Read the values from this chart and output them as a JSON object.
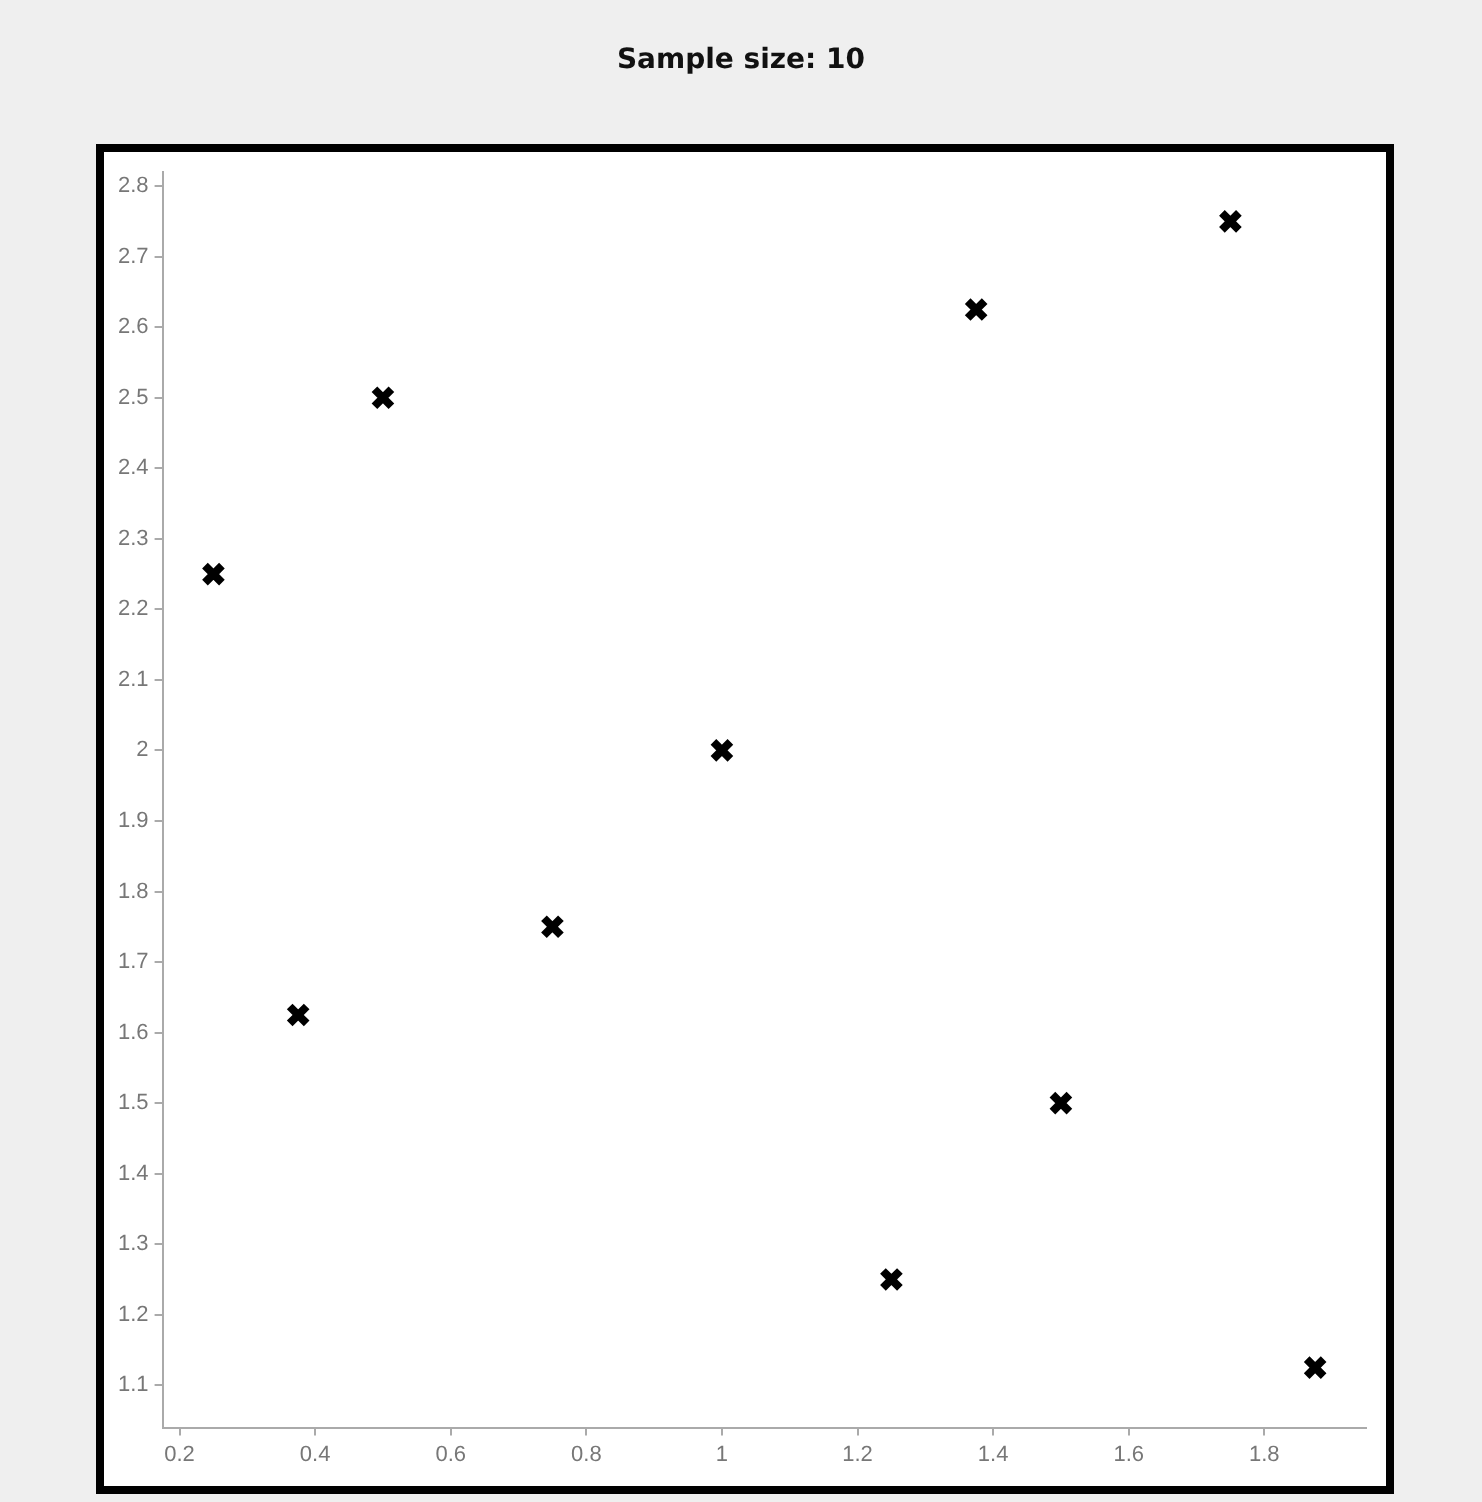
{
  "chart_data": {
    "type": "scatter",
    "title": "Sample size: 10",
    "x": [
      0.25,
      0.375,
      0.5,
      0.75,
      1,
      1.25,
      1.375,
      1.5,
      1.75,
      1.875
    ],
    "series": [
      {
        "color": "#000000",
        "values": [
          2.25,
          1.625,
          2.5,
          1.75,
          2,
          1.25,
          2.625,
          1.5,
          2.75,
          1.125
        ]
      }
    ],
    "xlim": [
      0.175,
      1.95
    ],
    "xticks": [
      0.2,
      0.4,
      0.6,
      0.8,
      1,
      1.2,
      1.4,
      1.6,
      1.8
    ],
    "ylim": [
      1.04,
      2.82
    ],
    "yticks": [
      1.1,
      1.2,
      1.3,
      1.4,
      1.5,
      1.6,
      1.7,
      1.8,
      1.9,
      2,
      2.1,
      2.2,
      2.3,
      2.4,
      2.5,
      2.6,
      2.7,
      2.8
    ],
    "grid": false,
    "legend": false,
    "marker": "cross"
  }
}
